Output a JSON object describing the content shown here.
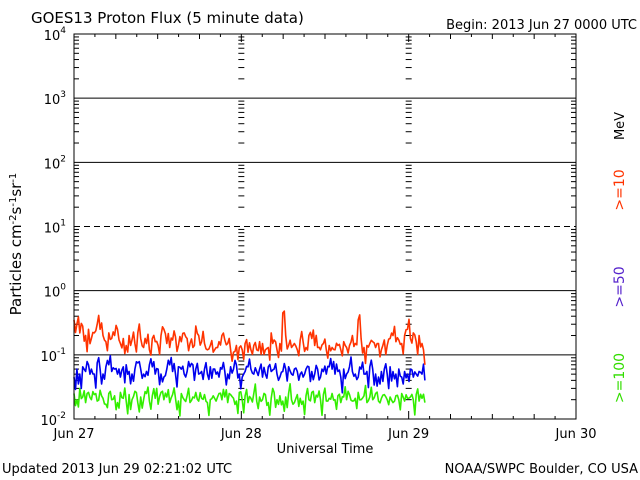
{
  "header": {
    "title": "GOES13 Proton Flux (5 minute data)",
    "begin": "Begin: 2013 Jun 27 0000 UTC"
  },
  "footer": {
    "updated": "Updated 2013 Jun 29 02:21:02 UTC",
    "credit": "NOAA/SWPC Boulder, CO USA"
  },
  "legend": {
    "unit": "MeV",
    "entries": [
      {
        "label": ">=10",
        "color": "#ff3300"
      },
      {
        "label": ">=50",
        "color": "#5522cc"
      },
      {
        "label": ">=100",
        "color": "#33dd00"
      }
    ]
  },
  "chart_data": {
    "type": "line",
    "title": "GOES13 Proton Flux (5 minute data)",
    "xlabel": "Universal Time",
    "ylabel": "Particles cm-2s-1sr-1",
    "y_scale": "log",
    "ylim": [
      0.01,
      10000
    ],
    "y_ticks": [
      {
        "value": 0.01,
        "base": "10",
        "exp": "-2"
      },
      {
        "value": 0.1,
        "base": "10",
        "exp": "-1"
      },
      {
        "value": 1,
        "base": "10",
        "exp": "0"
      },
      {
        "value": 10,
        "base": "10",
        "exp": "1"
      },
      {
        "value": 100,
        "base": "10",
        "exp": "2"
      },
      {
        "value": 1000,
        "base": "10",
        "exp": "3"
      },
      {
        "value": 10000,
        "base": "10",
        "exp": "4"
      }
    ],
    "dashed_threshold": 10,
    "x_ticks": [
      "Jun 27",
      "Jun 28",
      "Jun 29",
      "Jun 30"
    ],
    "xlim": [
      "2013-06-27 00:00",
      "2013-06-30 00:00"
    ],
    "grid": true,
    "legend_position": "right",
    "series": [
      {
        "name": ">=10 MeV",
        "color": "#ff3300",
        "x_start": "2013-06-27 00:00",
        "x_end": "2013-06-29 02:20",
        "values": [
          0.35,
          0.3,
          0.22,
          0.28,
          0.2,
          0.25,
          0.18,
          0.22,
          0.3,
          0.25,
          0.2,
          0.16,
          0.22,
          0.18,
          0.2,
          0.25,
          0.15,
          0.18,
          0.14,
          0.2,
          0.17,
          0.15,
          0.22,
          0.18,
          0.13,
          0.15,
          0.12,
          0.18,
          0.16,
          0.14,
          0.2,
          0.25,
          0.15,
          0.13,
          0.17,
          0.19,
          0.14,
          0.16,
          0.22,
          0.18,
          0.15,
          0.13,
          0.28,
          0.2,
          0.16,
          0.15,
          0.12,
          0.14,
          0.11,
          0.13,
          0.16,
          0.2,
          0.17,
          0.15,
          0.12,
          0.11,
          0.14,
          0.13,
          0.12,
          0.15,
          0.11,
          0.12,
          0.14,
          0.12,
          0.16,
          0.15,
          0.12,
          0.13,
          0.22,
          0.17,
          0.12,
          0.15,
          0.45,
          0.2,
          0.14,
          0.13,
          0.15,
          0.12,
          0.17,
          0.16,
          0.13,
          0.2,
          0.18,
          0.14,
          0.13,
          0.12,
          0.15,
          0.12,
          0.14,
          0.13,
          0.12,
          0.14,
          0.12,
          0.16,
          0.13,
          0.14,
          0.2,
          0.15,
          0.35,
          0.18,
          0.13,
          0.14,
          0.15,
          0.16,
          0.13,
          0.15,
          0.12,
          0.17,
          0.14,
          0.18,
          0.2,
          0.16,
          0.17,
          0.15,
          0.2,
          0.25,
          0.18,
          0.22,
          0.16,
          0.2,
          0.15,
          0.07
        ]
      },
      {
        "name": ">=50 MeV",
        "color": "#0000ee",
        "x_start": "2013-06-27 00:00",
        "x_end": "2013-06-29 02:20",
        "values": [
          0.045,
          0.06,
          0.05,
          0.065,
          0.055,
          0.07,
          0.06,
          0.05,
          0.075,
          0.06,
          0.05,
          0.065,
          0.07,
          0.055,
          0.06,
          0.05,
          0.045,
          0.065,
          0.07,
          0.055,
          0.05,
          0.06,
          0.075,
          0.06,
          0.05,
          0.055,
          0.07,
          0.065,
          0.05,
          0.06,
          0.05,
          0.045,
          0.06,
          0.07,
          0.055,
          0.05,
          0.065,
          0.06,
          0.05,
          0.055,
          0.065,
          0.07,
          0.06,
          0.05,
          0.055,
          0.06,
          0.05,
          0.065,
          0.06,
          0.05,
          0.045,
          0.06,
          0.055,
          0.05,
          0.065,
          0.06,
          0.07,
          0.05,
          0.045,
          0.055,
          0.065,
          0.06,
          0.05,
          0.055,
          0.06,
          0.045,
          0.05,
          0.065,
          0.055,
          0.06,
          0.05,
          0.045,
          0.055,
          0.06,
          0.065,
          0.05,
          0.06,
          0.055,
          0.05,
          0.045,
          0.06,
          0.065,
          0.055,
          0.05,
          0.06,
          0.045,
          0.055,
          0.05,
          0.065,
          0.06,
          0.05,
          0.055,
          0.045,
          0.06,
          0.05,
          0.065,
          0.055,
          0.05,
          0.045,
          0.06,
          0.05,
          0.055,
          0.065,
          0.06,
          0.05,
          0.045,
          0.055,
          0.06,
          0.05,
          0.065,
          0.055,
          0.05,
          0.06,
          0.045,
          0.055,
          0.05,
          0.06,
          0.045,
          0.05,
          0.055,
          0.05,
          0.04
        ]
      },
      {
        "name": ">=100 MeV",
        "color": "#33ee00",
        "x_start": "2013-06-27 00:00",
        "x_end": "2013-06-29 02:20",
        "values": [
          0.025,
          0.02,
          0.03,
          0.022,
          0.018,
          0.026,
          0.02,
          0.024,
          0.019,
          0.028,
          0.021,
          0.017,
          0.025,
          0.02,
          0.023,
          0.018,
          0.026,
          0.021,
          0.019,
          0.024,
          0.02,
          0.027,
          0.018,
          0.022,
          0.02,
          0.025,
          0.019,
          0.023,
          0.021,
          0.017,
          0.026,
          0.02,
          0.022,
          0.018,
          0.024,
          0.021,
          0.019,
          0.025,
          0.02,
          0.023,
          0.018,
          0.022,
          0.026,
          0.019,
          0.021,
          0.024,
          0.018,
          0.02,
          0.023,
          0.019,
          0.025,
          0.02,
          0.022,
          0.018,
          0.024,
          0.021,
          0.019,
          0.026,
          0.02,
          0.023,
          0.018,
          0.021,
          0.025,
          0.019,
          0.022,
          0.02,
          0.024,
          0.018,
          0.021,
          0.026,
          0.02,
          0.023,
          0.019,
          0.022,
          0.025,
          0.02,
          0.018,
          0.024,
          0.021,
          0.019,
          0.023,
          0.02,
          0.026,
          0.018,
          0.022,
          0.02,
          0.024,
          0.019,
          0.021,
          0.025,
          0.02,
          0.023,
          0.018,
          0.022,
          0.02,
          0.024,
          0.019,
          0.021,
          0.026,
          0.02,
          0.023,
          0.018,
          0.022,
          0.02,
          0.025,
          0.019,
          0.021,
          0.024,
          0.02,
          0.022,
          0.018,
          0.023,
          0.02,
          0.025,
          0.019,
          0.021,
          0.022,
          0.02,
          0.024,
          0.019,
          0.021,
          0.018
        ]
      }
    ]
  }
}
